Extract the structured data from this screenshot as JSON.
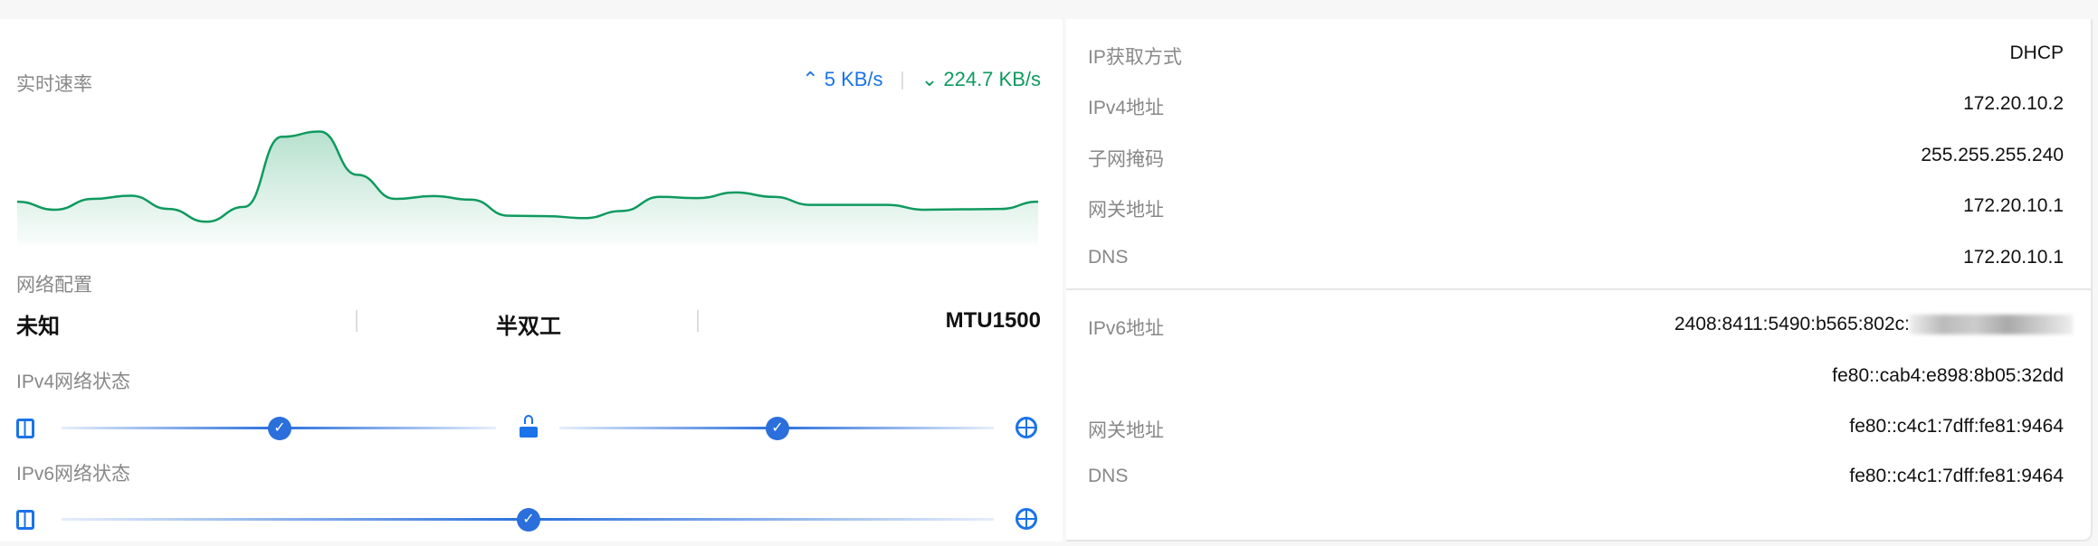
{
  "speed": {
    "title": "实时速率",
    "upload": "5 KB/s",
    "download": "224.7 KB/s",
    "upload_color": "#1a73e8",
    "download_color": "#0e9a5e"
  },
  "chart_data": {
    "type": "area",
    "series": [
      {
        "values": [
          108,
          88,
          115,
          123,
          90,
          58,
          95,
          270,
          283,
          175,
          115,
          122,
          113,
          73,
          72,
          67,
          85,
          120,
          117,
          131,
          120,
          100,
          100,
          100,
          88,
          89,
          90,
          108
        ]
      }
    ],
    "grid": false,
    "color": "#0e9a5e"
  },
  "network_config": {
    "title": "网络配置",
    "speed": "未知",
    "duplex": "半双工",
    "mtu": "MTU1500"
  },
  "ipv4_status": {
    "title": "IPv4网络状态",
    "nodes": [
      "device-icon",
      "check-icon",
      "router-icon",
      "check-icon",
      "globe-icon"
    ]
  },
  "ipv6_status": {
    "title": "IPv6网络状态",
    "nodes": [
      "device-icon",
      "check-icon",
      "globe-icon"
    ]
  },
  "ipv4": {
    "rows": [
      {
        "label": "IP获取方式",
        "value": "DHCP"
      },
      {
        "label": "IPv4地址",
        "value": "172.20.10.2"
      },
      {
        "label": "子网掩码",
        "value": "255.255.255.240"
      },
      {
        "label": "网关地址",
        "value": "172.20.10.1"
      },
      {
        "label": "DNS",
        "value": "172.20.10.1"
      }
    ]
  },
  "ipv6": {
    "rows": [
      {
        "label": "IPv6地址",
        "value": "2408:8411:5490:b565:802c:"
      },
      {
        "label": "",
        "value": "fe80::cab4:e898:8b05:32dd"
      },
      {
        "label": "网关地址",
        "value": "fe80::c4c1:7dff:fe81:9464"
      },
      {
        "label": "DNS",
        "value": "fe80::c4c1:7dff:fe81:9464"
      }
    ]
  }
}
